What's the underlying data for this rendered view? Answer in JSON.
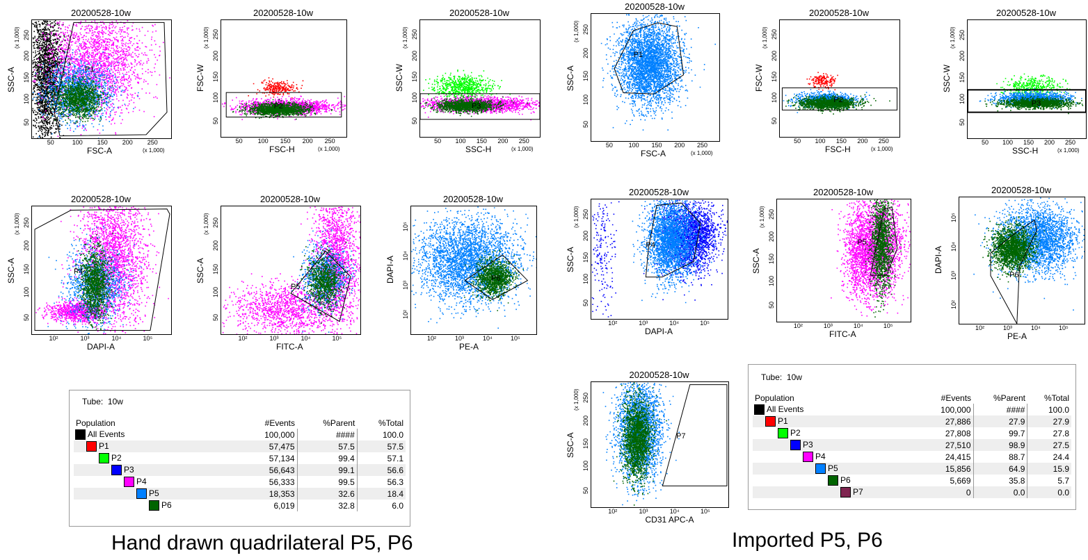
{
  "colors": {
    "all_events": "#000000",
    "P1": "#ff0000",
    "P2": "#00ff00",
    "P3": "#0000ff",
    "P4": "#ff00ff",
    "P5": "#0080ff",
    "P6": "#006400",
    "P7": "#7f2550"
  },
  "scale_label": "(x 1,000)",
  "panels": [
    {
      "title": "20200528-10w",
      "xlabel": "FSC-A",
      "ylabel": "SSC-A",
      "xticks": [
        "50",
        "100",
        "150",
        "200",
        "250"
      ],
      "yticks": [
        "50",
        "100",
        "150",
        "200",
        "250"
      ],
      "gates": [
        "P1"
      ]
    },
    {
      "title": "20200528-10w",
      "xlabel": "FSC-H",
      "ylabel": "FSC-W",
      "xticks": [
        "50",
        "100",
        "150",
        "200",
        "250"
      ],
      "yticks": [
        "50",
        "100",
        "150",
        "200",
        "250"
      ],
      "gates": [
        "P2"
      ]
    },
    {
      "title": "20200528-10w",
      "xlabel": "SSC-H",
      "ylabel": "SSC-W",
      "xticks": [
        "50",
        "100",
        "150",
        "200",
        "250"
      ],
      "yticks": [
        "50",
        "100",
        "150",
        "200",
        "250"
      ],
      "gates": [
        "P3"
      ]
    },
    {
      "title": "20200528-10w",
      "xlabel": "DAPI-A",
      "ylabel": "SSC-A",
      "xticks": [
        "10²",
        "10³",
        "10⁴",
        "10⁵"
      ],
      "yticks": [
        "50",
        "100",
        "150",
        "200",
        "250"
      ],
      "gates": [
        "P4"
      ]
    },
    {
      "title": "20200528-10w",
      "xlabel": "FITC-A",
      "ylabel": "SSC-A",
      "xticks": [
        "10²",
        "10³",
        "10⁴",
        "10⁵"
      ],
      "yticks": [
        "50",
        "100",
        "150",
        "200",
        "250"
      ],
      "gates": [
        "P5"
      ]
    },
    {
      "title": "20200528-10w",
      "xlabel": "PE-A",
      "ylabel": "DAPI-A",
      "xticks": [
        "10²",
        "10³",
        "10⁴",
        "10⁵"
      ],
      "yticks": [
        "10²",
        "10³",
        "10⁴",
        "10⁵"
      ],
      "gates": [
        "P6"
      ]
    },
    {
      "title": "20200528-10w",
      "xlabel": "FSC-A",
      "ylabel": "SSC-A",
      "xticks": [
        "50",
        "100",
        "150",
        "200",
        "250"
      ],
      "yticks": [
        "50",
        "100",
        "150",
        "200",
        "250"
      ],
      "gates": [
        "P1"
      ]
    },
    {
      "title": "20200528-10w",
      "xlabel": "FSC-H",
      "ylabel": "FSC-W",
      "xticks": [
        "50",
        "100",
        "150",
        "200",
        "250"
      ],
      "yticks": [
        "50",
        "100",
        "150",
        "200",
        "250"
      ],
      "gates": [
        "P2"
      ]
    },
    {
      "title": "20200528-10w",
      "xlabel": "SSC-H",
      "ylabel": "SSC-W",
      "xticks": [
        "50",
        "100",
        "150",
        "200",
        "250"
      ],
      "yticks": [
        "50",
        "100",
        "150",
        "200",
        "250"
      ],
      "gates": [
        "P3"
      ]
    },
    {
      "title": "20200528-10w",
      "xlabel": "DAPI-A",
      "ylabel": "SSC-A",
      "xticks": [
        "10²",
        "10³",
        "10⁴",
        "10⁵"
      ],
      "yticks": [
        "50",
        "100",
        "150",
        "200",
        "250"
      ],
      "gates": [
        "P4"
      ]
    },
    {
      "title": "20200528-10w",
      "xlabel": "FITC-A",
      "ylabel": "SSC-A",
      "xticks": [
        "10²",
        "10³",
        "10⁴",
        "10⁵"
      ],
      "yticks": [
        "50",
        "100",
        "150",
        "200",
        "250"
      ],
      "gates": [
        "P5"
      ]
    },
    {
      "title": "20200528-10w",
      "xlabel": "PE-A",
      "ylabel": "DAPI-A",
      "xticks": [
        "10²",
        "10³",
        "10⁴",
        "10⁵"
      ],
      "yticks": [
        "10²",
        "10³",
        "10⁴",
        "10⁵"
      ],
      "gates": [
        "P6"
      ]
    },
    {
      "title": "20200528-10w",
      "xlabel": "CD31 APC-A",
      "ylabel": "SSC-A",
      "xticks": [
        "10²",
        "10³",
        "10⁴",
        "10⁵"
      ],
      "yticks": [
        "50",
        "100",
        "150",
        "200",
        "250"
      ],
      "gates": [
        "P7"
      ]
    }
  ],
  "table_left": {
    "tube_label": "Tube:",
    "tube_value": "10w",
    "headers": [
      "Population",
      "#Events",
      "%Parent",
      "%Total"
    ],
    "rows": [
      {
        "name": "All Events",
        "events": "100,000",
        "parent": "####",
        "total": "100.0"
      },
      {
        "name": "P1",
        "events": "57,475",
        "parent": "57.5",
        "total": "57.5"
      },
      {
        "name": "P2",
        "events": "57,134",
        "parent": "99.4",
        "total": "57.1"
      },
      {
        "name": "P3",
        "events": "56,643",
        "parent": "99.1",
        "total": "56.6"
      },
      {
        "name": "P4",
        "events": "56,333",
        "parent": "99.5",
        "total": "56.3"
      },
      {
        "name": "P5",
        "events": "18,353",
        "parent": "32.6",
        "total": "18.4"
      },
      {
        "name": "P6",
        "events": "6,019",
        "parent": "32.8",
        "total": "6.0"
      }
    ]
  },
  "table_right": {
    "tube_label": "Tube:",
    "tube_value": "10w",
    "headers": [
      "Population",
      "#Events",
      "%Parent",
      "%Total"
    ],
    "rows": [
      {
        "name": "All Events",
        "events": "100,000",
        "parent": "####",
        "total": "100.0"
      },
      {
        "name": "P1",
        "events": "27,886",
        "parent": "27.9",
        "total": "27.9"
      },
      {
        "name": "P2",
        "events": "27,808",
        "parent": "99.7",
        "total": "27.8"
      },
      {
        "name": "P3",
        "events": "27,510",
        "parent": "98.9",
        "total": "27.5"
      },
      {
        "name": "P4",
        "events": "24,415",
        "parent": "88.7",
        "total": "24.4"
      },
      {
        "name": "P5",
        "events": "15,856",
        "parent": "64.9",
        "total": "15.9"
      },
      {
        "name": "P6",
        "events": "5,669",
        "parent": "35.8",
        "total": "5.7"
      },
      {
        "name": "P7",
        "events": "0",
        "parent": "0.0",
        "total": "0.0"
      }
    ]
  },
  "captions": {
    "left": "Hand drawn quadrilateral P5, P6",
    "right": "Imported P5, P6"
  }
}
